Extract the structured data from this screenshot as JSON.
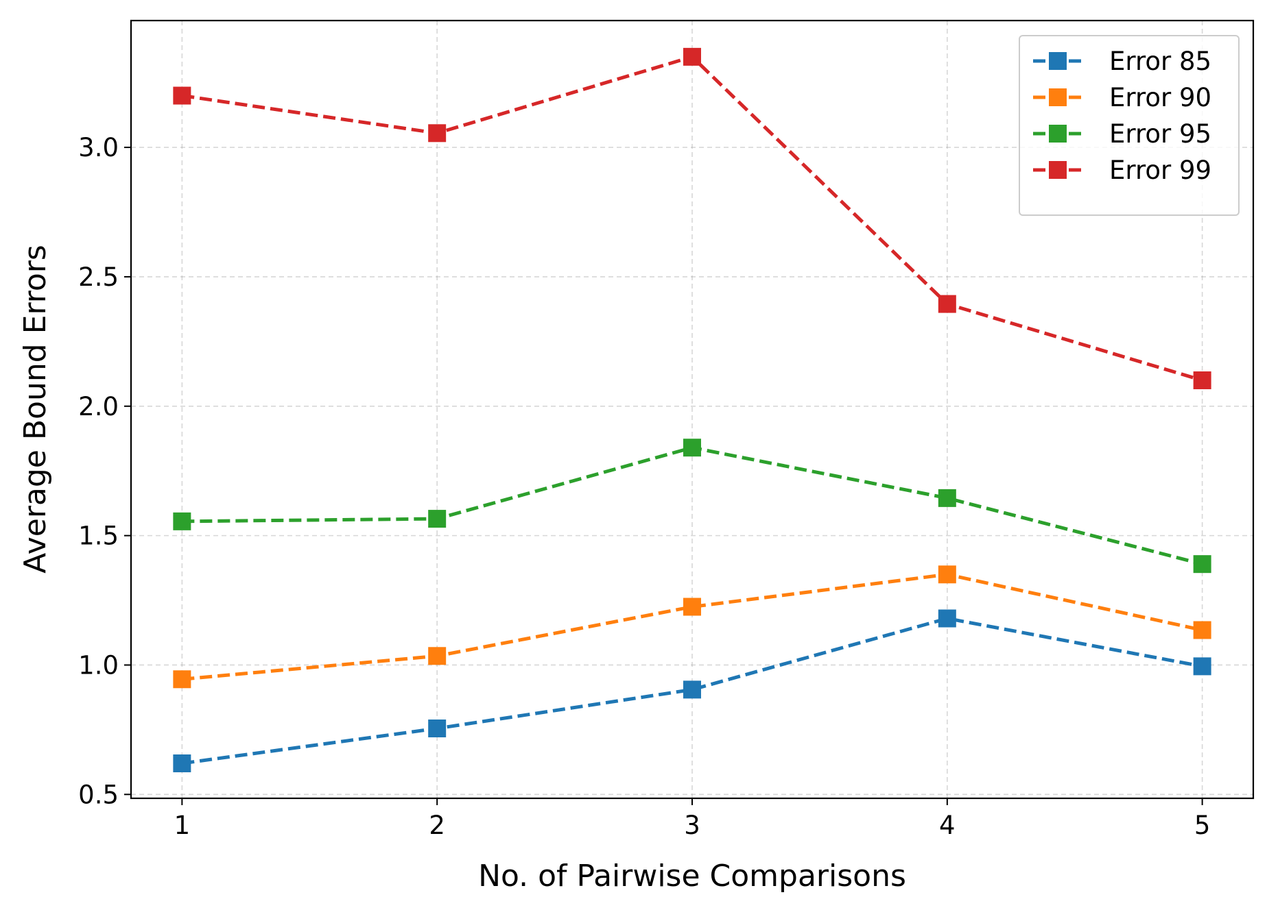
{
  "chart_data": {
    "type": "line",
    "title": "",
    "xlabel": "No. of Pairwise Comparisons",
    "ylabel": "Average Bound Errors",
    "x": [
      1,
      2,
      3,
      4,
      5
    ],
    "xticks": [
      "1",
      "2",
      "3",
      "4",
      "5"
    ],
    "yticks": [
      "0.5",
      "1.0",
      "1.5",
      "2.0",
      "2.5",
      "3.0"
    ],
    "xlim": [
      0.8,
      5.2
    ],
    "ylim": [
      0.485,
      3.49
    ],
    "grid": true,
    "legend_position": "top-right",
    "line_style": "dashed",
    "marker": "square",
    "series": [
      {
        "name": "Error 85",
        "color": "#1f77b4",
        "values": [
          0.62,
          0.755,
          0.905,
          1.18,
          0.995
        ]
      },
      {
        "name": "Error 90",
        "color": "#ff7f0e",
        "values": [
          0.945,
          1.035,
          1.225,
          1.35,
          1.135
        ]
      },
      {
        "name": "Error 95",
        "color": "#2ca02c",
        "values": [
          1.555,
          1.565,
          1.84,
          1.645,
          1.39
        ]
      },
      {
        "name": "Error 99",
        "color": "#d62728",
        "values": [
          3.2,
          3.055,
          3.35,
          2.395,
          2.1
        ]
      }
    ]
  }
}
